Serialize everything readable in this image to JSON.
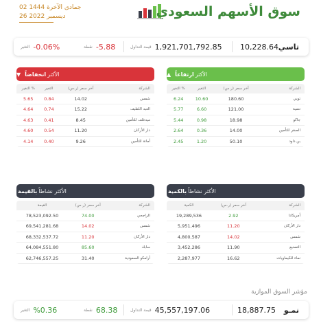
{
  "header": {
    "date_hijri": "02 جمادى الآخرة 1444",
    "date_gregorian": "26 ديسمبر 2022",
    "title": "سوق الأسهم السعودي"
  },
  "tasi": {
    "name": "تاسي",
    "value": "10,228.64",
    "turnover_label": "قيمة التداول",
    "turnover": "1,921,701,792.85",
    "points_label": "نقطة",
    "points": "-5.88",
    "change_label": "التغير",
    "change": "-0.06%"
  },
  "nomu": {
    "section_label": "مؤشر السوق الموازية",
    "name": "نمـو",
    "value": "18,887.75",
    "turnover_label": "قيمة التداول",
    "turnover": "45,557,197.06",
    "points_label": "نقطة",
    "points": "68.38",
    "change_label": "التغير",
    "change": "%0.36"
  },
  "gainers": {
    "title_prefix": "الأكثر",
    "title_bold": "ارتفاعاً",
    "cols": [
      "الشركة",
      "آخر سعر (ر.س)",
      "التغير",
      "التغير %"
    ],
    "rows": [
      {
        "name": "توبي",
        "price": "180.60",
        "chg": "10.60",
        "pct": "6.24"
      },
      {
        "name": "تنمية",
        "price": "121.00",
        "chg": "6.60",
        "pct": "5.77"
      },
      {
        "name": "جاكو",
        "price": "18.98",
        "chg": "0.98",
        "pct": "5.44"
      },
      {
        "name": "الصقر للتأمين",
        "price": "14.00",
        "chg": "0.36",
        "pct": "2.64"
      },
      {
        "name": "بن داود",
        "price": "50.10",
        "chg": "1.20",
        "pct": "2.45"
      }
    ]
  },
  "losers": {
    "title_prefix": "الأكثر",
    "title_bold": "انخفاضاً",
    "cols": [
      "الشركة",
      "آخر سعر (ر.س)",
      "التغير",
      "التغير %"
    ],
    "rows": [
      {
        "name": "شمس",
        "price": "14.02",
        "chg": "0.84",
        "pct": "5.65"
      },
      {
        "name": "العبد اللطيف",
        "price": "15.22",
        "chg": "0.74",
        "pct": "4.64"
      },
      {
        "name": "ميدغلف للتأمين",
        "price": "8.45",
        "chg": "0.41",
        "pct": "4.63"
      },
      {
        "name": "دار الأركان",
        "price": "11.20",
        "chg": "0.54",
        "pct": "4.60"
      },
      {
        "name": "أمانة للتأمين",
        "price": "9.26",
        "chg": "0.40",
        "pct": "4.14"
      }
    ]
  },
  "by_volume": {
    "title_prefix": "الأكثر نشاطاً",
    "title_bold": "بالكمية",
    "cols": [
      "الشركة",
      "آخر سعر (ر.س)",
      "الكمية"
    ],
    "rows": [
      {
        "name": "أمريكانا",
        "price": "2.92",
        "qty": "19,289,536"
      },
      {
        "name": "دار الأركان",
        "price": "11.20",
        "qty": "5,951,496"
      },
      {
        "name": "شمس",
        "price": "14.02",
        "qty": "4,800,587"
      },
      {
        "name": "التصنيع",
        "price": "11.90",
        "qty": "3,452,286"
      },
      {
        "name": "نماء للكيماويات",
        "price": "16.62",
        "qty": "2,287,977"
      }
    ]
  },
  "by_value": {
    "title_prefix": "الأكثر نشاطاً",
    "title_bold": "بالقيمة",
    "cols": [
      "الشركة",
      "آخر سعر (ر.س)",
      "القيمة"
    ],
    "rows": [
      {
        "name": "الراجحي",
        "price": "74.00",
        "val": "78,523,092.50"
      },
      {
        "name": "شمس",
        "price": "14.02",
        "val": "69,541,281.68"
      },
      {
        "name": "دار الأركان",
        "price": "11.20",
        "val": "68,332,537.72"
      },
      {
        "name": "سابك",
        "price": "85.60",
        "val": "64,084,551.80"
      },
      {
        "name": "أرامكو السعودية",
        "price": "31.40",
        "val": "62,746,557.25"
      }
    ]
  },
  "colors": {
    "green": "#6abf4b",
    "red": "#d9343a",
    "dark": "#3a3f4b",
    "gold": "#c98a2c"
  }
}
